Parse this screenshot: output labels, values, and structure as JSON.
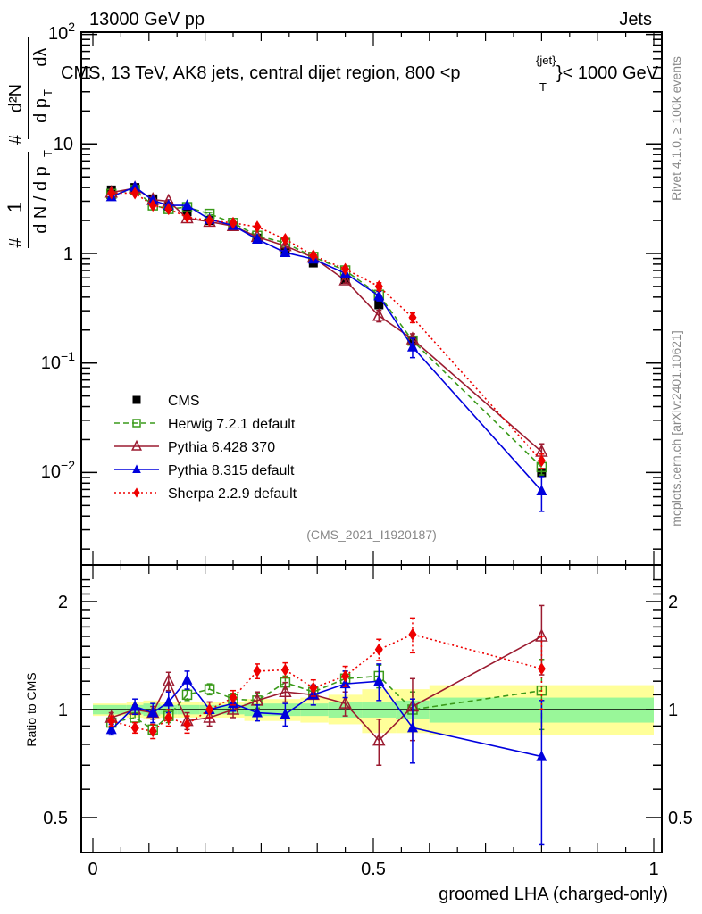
{
  "header": {
    "left": "13000 GeV pp",
    "right": "Jets"
  },
  "side_labels": {
    "rivet": "Rivet 4.1.0, ≥ 100k events",
    "mcplots": "mcplots.cern.ch [arXiv:2401.10621]"
  },
  "chart_data": [
    {
      "type": "line",
      "panel": "main",
      "title": "CMS, 13 TeV, AK8 jets, central dijet region, 800 <p_T^{jet}< 1000 GeV",
      "title_parts": [
        "CMS, 13 TeV, AK8 jets, central dijet region, 800 <p",
        "{jet}",
        "T",
        "}< 1000 GeV"
      ],
      "ylabel": "1/(dN/dp_T) d²N/(dp_T dλ)",
      "ylabel_parts": {
        "frac1_num": "1",
        "frac1_den": "d N / d p",
        "frac2_num": "d²N",
        "frac2_den": "d p",
        "sub": "T",
        "dl": "dλ",
        "hash": "#"
      },
      "yscale": "log",
      "ylim": [
        0.00137,
        100
      ],
      "xlim": [
        -0.02,
        1.015
      ],
      "yticks": [
        {
          "value": 100,
          "base": "10",
          "exp": "2"
        },
        {
          "value": 10,
          "base": "10",
          "exp": ""
        },
        {
          "value": 1,
          "base": "1",
          "exp": ""
        },
        {
          "value": 0.1,
          "base": "10",
          "exp": "−1"
        },
        {
          "value": 0.01,
          "base": "10",
          "exp": "−2"
        }
      ],
      "x": [
        0.033,
        0.075,
        0.107,
        0.135,
        0.168,
        0.208,
        0.25,
        0.293,
        0.343,
        0.393,
        0.45,
        0.51,
        0.57,
        0.8
      ],
      "series": [
        {
          "name": "CMS",
          "marker": "square-filled",
          "color": "#000000",
          "line": "none",
          "values": [
            3.8,
            4.0,
            3.15,
            2.7,
            2.4,
            2.0,
            1.78,
            1.38,
            1.05,
            0.82,
            0.58,
            0.34,
            0.16,
            0.01
          ]
        },
        {
          "name": "Herwig 7.2.1 default",
          "marker": "square-open",
          "color": "#3a9a1a",
          "line": "dashed",
          "values": [
            3.5,
            3.8,
            2.75,
            2.55,
            2.65,
            2.3,
            1.9,
            1.45,
            1.25,
            0.93,
            0.7,
            0.42,
            0.16,
            0.0112
          ]
        },
        {
          "name": "Pythia 6.428 370",
          "marker": "triangle-open",
          "color": "#9b1b30",
          "line": "solid",
          "values": [
            3.6,
            3.95,
            3.1,
            3.0,
            2.1,
            1.95,
            1.78,
            1.42,
            1.17,
            0.92,
            0.57,
            0.27,
            0.165,
            0.0155
          ]
        },
        {
          "name": "Pythia 8.315 default",
          "marker": "triangle-filled",
          "color": "#0000dd",
          "line": "solid",
          "values": [
            3.3,
            4.05,
            3.05,
            2.75,
            2.75,
            2.05,
            1.8,
            1.35,
            1.02,
            0.89,
            0.66,
            0.41,
            0.14,
            0.0068
          ]
        },
        {
          "name": "Sherpa 2.2.9 default",
          "marker": "diamond-filled",
          "color": "#ee0000",
          "line": "dotted",
          "values": [
            3.55,
            3.55,
            2.75,
            2.55,
            2.15,
            2.0,
            1.9,
            1.75,
            1.35,
            0.96,
            0.72,
            0.5,
            0.26,
            0.0128
          ]
        }
      ],
      "errors_rel": {
        "Pythia 6.428 370": [
          0.02,
          0.02,
          0.02,
          0.03,
          0.03,
          0.03,
          0.03,
          0.03,
          0.04,
          0.04,
          0.06,
          0.12,
          0.12,
          0.18
        ],
        "Pythia 8.315 default": [
          0.02,
          0.02,
          0.02,
          0.03,
          0.03,
          0.03,
          0.03,
          0.03,
          0.04,
          0.04,
          0.06,
          0.1,
          0.2,
          0.35
        ],
        "Sherpa 2.2.9 default": [
          0.02,
          0.02,
          0.02,
          0.03,
          0.03,
          0.03,
          0.03,
          0.03,
          0.04,
          0.04,
          0.05,
          0.08,
          0.1,
          0.15
        ],
        "Herwig 7.2.1 default": [
          0.02,
          0.02,
          0.02,
          0.03,
          0.03,
          0.03,
          0.03,
          0.03,
          0.04,
          0.04,
          0.05,
          0.08,
          0.1,
          0.15
        ]
      },
      "legend": {
        "placement": "lower-left"
      },
      "annotation": "(CMS_2021_I1920187)"
    },
    {
      "type": "line",
      "panel": "ratio",
      "ylabel": "Ratio to CMS",
      "xlabel": "groomed LHA (charged-only)",
      "yscale": "log",
      "ylim": [
        0.425,
        2.35
      ],
      "xlim": [
        -0.02,
        1.015
      ],
      "yticks": [
        {
          "value": 2,
          "label": "2"
        },
        {
          "value": 1,
          "label": "1"
        },
        {
          "value": 0.5,
          "label": "0.5"
        }
      ],
      "xticks": [
        {
          "value": 0,
          "label": "0"
        },
        {
          "value": 0.5,
          "label": "0.5"
        },
        {
          "value": 1,
          "label": "1"
        }
      ],
      "reference_line": 1,
      "bands": {
        "edges": [
          0.0,
          0.06,
          0.09,
          0.12,
          0.15,
          0.19,
          0.23,
          0.27,
          0.32,
          0.37,
          0.42,
          0.48,
          0.54,
          0.6,
          1.0
        ],
        "inner_lo": [
          0.97,
          0.97,
          0.96,
          0.97,
          0.97,
          0.97,
          0.97,
          0.96,
          0.96,
          0.96,
          0.95,
          0.95,
          0.94,
          0.92
        ],
        "inner_hi": [
          1.03,
          1.03,
          1.04,
          1.03,
          1.03,
          1.03,
          1.03,
          1.04,
          1.04,
          1.04,
          1.05,
          1.05,
          1.06,
          1.08
        ],
        "outer_lo": [
          0.96,
          0.95,
          0.94,
          0.95,
          0.95,
          0.95,
          0.95,
          0.93,
          0.93,
          0.92,
          0.91,
          0.86,
          0.86,
          0.85
        ],
        "outer_hi": [
          1.04,
          1.05,
          1.06,
          1.05,
          1.05,
          1.05,
          1.05,
          1.07,
          1.07,
          1.08,
          1.1,
          1.14,
          1.14,
          1.17
        ],
        "inner_color": "#99f799",
        "outer_color": "#ffff99"
      },
      "x": [
        0.033,
        0.075,
        0.107,
        0.135,
        0.168,
        0.208,
        0.25,
        0.293,
        0.343,
        0.393,
        0.45,
        0.51,
        0.57,
        0.8
      ],
      "series": [
        {
          "name": "Herwig 7.2.1 default",
          "marker": "square-open",
          "color": "#3a9a1a",
          "line": "dashed",
          "values": [
            0.92,
            0.95,
            0.88,
            0.96,
            1.1,
            1.14,
            1.07,
            1.06,
            1.19,
            1.12,
            1.22,
            1.24,
            1.0,
            1.13
          ],
          "err": [
            0.03,
            0.03,
            0.03,
            0.04,
            0.04,
            0.04,
            0.04,
            0.05,
            0.05,
            0.05,
            0.06,
            0.09,
            0.12,
            0.25
          ]
        },
        {
          "name": "Pythia 6.428 370",
          "marker": "triangle-open",
          "color": "#9b1b30",
          "line": "solid",
          "values": [
            0.95,
            1.0,
            0.98,
            1.2,
            0.93,
            0.95,
            1.0,
            1.06,
            1.12,
            1.1,
            1.04,
            0.82,
            1.02,
            1.6
          ],
          "err": [
            0.03,
            0.03,
            0.04,
            0.07,
            0.05,
            0.05,
            0.05,
            0.06,
            0.07,
            0.07,
            0.08,
            0.12,
            0.2,
            0.35
          ]
        },
        {
          "name": "Pythia 8.315 default",
          "marker": "triangle-filled",
          "color": "#0000dd",
          "line": "solid",
          "values": [
            0.88,
            1.02,
            0.98,
            1.05,
            1.21,
            1.0,
            1.04,
            0.98,
            0.97,
            1.1,
            1.18,
            1.2,
            0.89,
            0.74
          ],
          "err": [
            0.03,
            0.05,
            0.06,
            0.07,
            0.07,
            0.05,
            0.05,
            0.05,
            0.07,
            0.07,
            0.1,
            0.14,
            0.18,
            0.32
          ]
        },
        {
          "name": "Sherpa 2.2.9 default",
          "marker": "diamond-filled",
          "color": "#ee0000",
          "line": "dotted",
          "values": [
            0.93,
            0.89,
            0.87,
            0.95,
            0.91,
            1.0,
            1.08,
            1.28,
            1.29,
            1.15,
            1.24,
            1.47,
            1.62,
            1.3
          ],
          "err": [
            0.03,
            0.03,
            0.04,
            0.05,
            0.05,
            0.05,
            0.05,
            0.06,
            0.06,
            0.06,
            0.08,
            0.1,
            0.18,
            0.3
          ]
        }
      ]
    }
  ]
}
